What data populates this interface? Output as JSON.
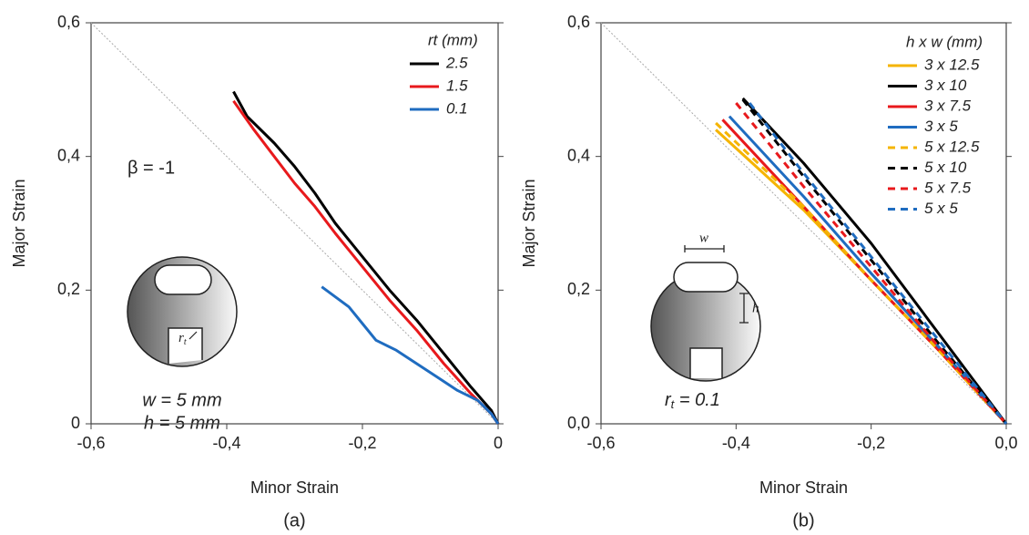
{
  "chart_data": [
    {
      "type": "line",
      "caption": "(a)",
      "xlabel": "Minor Strain",
      "ylabel": "Major Strain",
      "xlim": [
        -0.6,
        0
      ],
      "ylim": [
        0,
        0.6
      ],
      "xticks": [
        {
          "value": -0.6,
          "label": "-0,6"
        },
        {
          "value": -0.4,
          "label": "-0,4"
        },
        {
          "value": -0.2,
          "label": "-0,2"
        },
        0
      ],
      "yticks": [
        0,
        {
          "value": 0.2,
          "label": "0,2"
        },
        {
          "value": 0.4,
          "label": "0,4"
        },
        {
          "value": 0.6,
          "label": "0,6"
        }
      ],
      "legend_title": "rt (mm)",
      "reference_line": {
        "x": [
          -0.6,
          0
        ],
        "y": [
          0.6,
          0
        ],
        "color": "#aaaaaa"
      },
      "series": [
        {
          "name": "2.5",
          "color": "#000000",
          "dashed": false,
          "x": [
            -0.39,
            -0.37,
            -0.33,
            -0.3,
            -0.27,
            -0.24,
            -0.2,
            -0.16,
            -0.12,
            -0.08,
            -0.04,
            -0.01,
            0
          ],
          "y": [
            0.497,
            0.46,
            0.42,
            0.385,
            0.345,
            0.3,
            0.25,
            0.2,
            0.155,
            0.105,
            0.055,
            0.02,
            0
          ]
        },
        {
          "name": "1.5",
          "color": "#e8191c",
          "dashed": false,
          "x": [
            -0.39,
            -0.36,
            -0.33,
            -0.3,
            -0.27,
            -0.24,
            -0.2,
            -0.16,
            -0.12,
            -0.08,
            -0.04,
            -0.01,
            0
          ],
          "y": [
            0.483,
            0.44,
            0.4,
            0.36,
            0.325,
            0.285,
            0.235,
            0.185,
            0.14,
            0.09,
            0.045,
            0.015,
            0
          ]
        },
        {
          "name": "0.1",
          "color": "#1f6cc0",
          "dashed": false,
          "x": [
            -0.26,
            -0.24,
            -0.22,
            -0.2,
            -0.18,
            -0.15,
            -0.12,
            -0.09,
            -0.06,
            -0.03,
            -0.01,
            0
          ],
          "y": [
            0.205,
            0.19,
            0.175,
            0.15,
            0.125,
            0.11,
            0.09,
            0.07,
            0.05,
            0.035,
            0.015,
            0
          ]
        }
      ],
      "annotations": [
        "β = -1",
        "w = 5 mm",
        "h = 5 mm",
        {
          "text": "r",
          "subscript": "t"
        }
      ]
    },
    {
      "type": "line",
      "caption": "(b)",
      "xlabel": "Minor Strain",
      "ylabel": "Major Strain",
      "xlim": [
        -0.6,
        0
      ],
      "ylim": [
        0,
        0.6
      ],
      "xticks": [
        {
          "value": -0.6,
          "label": "-0,6"
        },
        {
          "value": -0.4,
          "label": "-0,4"
        },
        {
          "value": -0.2,
          "label": "-0,2"
        },
        {
          "value": 0,
          "label": "0,0"
        }
      ],
      "yticks": [
        {
          "value": 0,
          "label": "0,0"
        },
        {
          "value": 0.2,
          "label": "0,2"
        },
        {
          "value": 0.4,
          "label": "0,4"
        },
        {
          "value": 0.6,
          "label": "0,6"
        }
      ],
      "legend_title": "h x w (mm)",
      "reference_line": {
        "x": [
          -0.6,
          0
        ],
        "y": [
          0.6,
          0
        ],
        "color": "#aaaaaa"
      },
      "series": [
        {
          "name": "3 x 12.5",
          "color": "#f5b400",
          "dashed": false,
          "x": [
            -0.43,
            -0.3,
            -0.2,
            -0.1,
            0
          ],
          "y": [
            0.44,
            0.32,
            0.215,
            0.11,
            0
          ]
        },
        {
          "name": "3 x 10",
          "color": "#000000",
          "dashed": false,
          "x": [
            -0.39,
            -0.3,
            -0.2,
            -0.1,
            0
          ],
          "y": [
            0.487,
            0.39,
            0.27,
            0.135,
            0
          ]
        },
        {
          "name": "3 x 7.5",
          "color": "#e8191c",
          "dashed": false,
          "x": [
            -0.42,
            -0.3,
            -0.2,
            -0.1,
            0
          ],
          "y": [
            0.455,
            0.325,
            0.215,
            0.11,
            0
          ]
        },
        {
          "name": "3 x 5",
          "color": "#1f6cc0",
          "dashed": false,
          "x": [
            -0.41,
            -0.3,
            -0.2,
            -0.1,
            0
          ],
          "y": [
            0.46,
            0.34,
            0.225,
            0.115,
            0
          ]
        },
        {
          "name": "5 x 12.5",
          "color": "#f5b400",
          "dashed": true,
          "x": [
            -0.43,
            -0.3,
            -0.2,
            -0.1,
            0
          ],
          "y": [
            0.45,
            0.325,
            0.215,
            0.11,
            0
          ]
        },
        {
          "name": "5 x 10",
          "color": "#000000",
          "dashed": true,
          "x": [
            -0.39,
            -0.3,
            -0.2,
            -0.1,
            0
          ],
          "y": [
            0.485,
            0.37,
            0.245,
            0.12,
            0
          ]
        },
        {
          "name": "5 x 7.5",
          "color": "#e8191c",
          "dashed": true,
          "x": [
            -0.4,
            -0.3,
            -0.2,
            -0.1,
            0
          ],
          "y": [
            0.48,
            0.355,
            0.235,
            0.115,
            0
          ]
        },
        {
          "name": "5 x 5",
          "color": "#1f6cc0",
          "dashed": true,
          "x": [
            -0.38,
            -0.3,
            -0.2,
            -0.1,
            0
          ],
          "y": [
            0.48,
            0.375,
            0.25,
            0.125,
            0
          ]
        }
      ],
      "annotations": [
        {
          "text": "r",
          "subscript": "t",
          "after": " = 0.1"
        },
        "w",
        "h"
      ]
    }
  ]
}
